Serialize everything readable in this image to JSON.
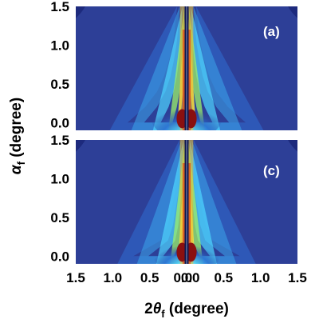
{
  "chart_data": [
    {
      "type": "heatmap",
      "panel_label": "(a)",
      "xlim": [
        -1.5,
        1.5
      ],
      "ylim": [
        -0.1,
        1.5
      ],
      "y_ticks": [
        "1.5",
        "1.0",
        "0.5",
        "0.0"
      ],
      "y_tick_values": [
        1.5,
        1.0,
        0.5,
        0.0
      ],
      "x_ticks": [],
      "colormap": "jet",
      "profile": {
        "y": [
          0.0,
          0.2,
          0.4,
          0.6,
          0.8,
          1.0,
          1.2,
          1.5
        ],
        "halfwidth_deg": [
          0.5,
          0.35,
          0.25,
          0.19,
          0.15,
          0.12,
          0.1,
          0.08
        ]
      },
      "beamstop": true
    },
    {
      "type": "heatmap",
      "panel_label": "(c)",
      "xlim": [
        -1.5,
        1.5
      ],
      "ylim": [
        -0.1,
        1.5
      ],
      "y_ticks": [
        "1.5",
        "1.0",
        "0.5",
        "0.0"
      ],
      "y_tick_values": [
        1.5,
        1.0,
        0.5,
        0.0
      ],
      "x_ticks": [
        "1.5",
        "1.0",
        "0.5",
        "0.0",
        "0.0",
        "0.5",
        "1.0",
        "1.5"
      ],
      "x_tick_values": [
        -1.5,
        -1.0,
        -0.5,
        -0.05,
        0.05,
        0.5,
        1.0,
        1.5
      ],
      "colormap": "jet",
      "profile": {
        "y": [
          0.0,
          0.2,
          0.4,
          0.6,
          0.8,
          1.0,
          1.2,
          1.5
        ],
        "halfwidth_deg": [
          0.45,
          0.22,
          0.16,
          0.13,
          0.1,
          0.08,
          0.07,
          0.06
        ]
      },
      "beamstop": true
    }
  ],
  "axes": {
    "ylabel_symbol": "α",
    "ylabel_sub": "f",
    "ylabel_rest": " (degree)",
    "xlabel_prefix": "2",
    "xlabel_symbol": "θ",
    "xlabel_sub": "f",
    "xlabel_rest": " (degree)"
  },
  "colors": {
    "background": "#2d3f97",
    "corner": "#1d2a7d",
    "streak": "#8a1010",
    "beamstop": "#c8d0e8"
  }
}
